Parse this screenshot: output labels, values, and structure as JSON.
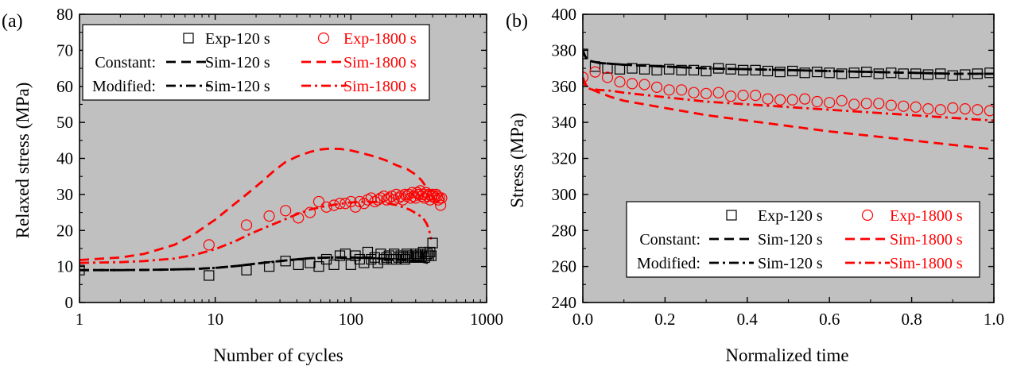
{
  "panels": [
    {
      "panel_label": "(a)",
      "xlabel": "Number of cycles",
      "ylabel": "Relaxed stress (MPa)"
    },
    {
      "panel_label": "(b)",
      "xlabel": "Normalized time",
      "ylabel": "Stress (MPa)"
    }
  ],
  "colors": {
    "plot_bg": "#c0c0c0",
    "black": "#000000",
    "red": "#ff0000",
    "legend_bg": "#ffffff"
  },
  "chart_data": [
    {
      "type": "scatter",
      "panel_label": "(a)",
      "xlabel": "Number of cycles",
      "ylabel": "Relaxed stress (MPa)",
      "xscale": "log",
      "xlim": [
        1,
        1000
      ],
      "ylim": [
        0,
        80
      ],
      "x_ticks": [
        1,
        10,
        100,
        1000
      ],
      "x_tick_labels": [
        "1",
        "10",
        "100",
        "1000"
      ],
      "y_ticks": [
        0,
        10,
        20,
        30,
        40,
        50,
        60,
        70,
        80
      ],
      "y_tick_labels": [
        "0",
        "10",
        "20",
        "30",
        "40",
        "50",
        "60",
        "70",
        "80"
      ],
      "grid": false,
      "legend_position": "top-left",
      "legend_rows": [
        {
          "prefix": "",
          "entries": [
            {
              "series": "Exp-120 s",
              "label": "Exp-120 s",
              "color": "black"
            },
            {
              "series": "Exp-1800 s",
              "label": "Exp-1800 s",
              "color": "red"
            }
          ]
        },
        {
          "prefix": "Constant:",
          "entries": [
            {
              "series": "Constant Sim-120 s",
              "label": "Sim-120 s",
              "color": "black"
            },
            {
              "series": "Constant Sim-1800 s",
              "label": "Sim-1800 s",
              "color": "red"
            }
          ]
        },
        {
          "prefix": "Modified:",
          "entries": [
            {
              "series": "Modified Sim-120 s",
              "label": "Sim-120 s",
              "color": "black"
            },
            {
              "series": "Modified Sim-1800 s",
              "label": "Sim-1800 s",
              "color": "red"
            }
          ]
        }
      ],
      "series": [
        {
          "name": "Exp-120 s",
          "style": "square-open",
          "color": "black",
          "x": [
            1,
            9,
            17,
            25,
            33,
            41,
            50,
            58,
            66,
            75,
            83,
            91,
            100,
            108,
            116,
            125,
            133,
            141,
            150,
            158,
            166,
            175,
            183,
            191,
            200,
            208,
            216,
            225,
            233,
            241,
            250,
            258,
            266,
            275,
            283,
            291,
            300,
            308,
            316,
            325,
            333,
            341,
            350,
            358,
            366,
            375,
            383,
            391,
            400
          ],
          "y": [
            9,
            7.5,
            9,
            10,
            11.5,
            10.5,
            11,
            10,
            12,
            10.5,
            13,
            13.5,
            10.5,
            13,
            12,
            11,
            14,
            12,
            12.5,
            11,
            13.5,
            12,
            12.5,
            13,
            12,
            13.5,
            12,
            12.5,
            13,
            12.5,
            12,
            13.5,
            13,
            12.5,
            13,
            12.5,
            13.5,
            13,
            12.5,
            13.5,
            13,
            14,
            12.5,
            13,
            13.5,
            13,
            14,
            13,
            16.5
          ]
        },
        {
          "name": "Exp-1800 s",
          "style": "circle-open",
          "color": "red",
          "x": [
            9,
            17,
            25,
            33,
            41,
            50,
            58,
            66,
            75,
            83,
            91,
            100,
            108,
            116,
            125,
            133,
            141,
            150,
            158,
            166,
            175,
            183,
            191,
            200,
            208,
            216,
            225,
            233,
            241,
            250,
            258,
            266,
            275,
            283,
            291,
            300,
            308,
            316,
            325,
            333,
            341,
            350,
            358,
            366,
            375,
            383,
            391,
            400,
            408,
            416,
            425,
            433,
            441,
            450,
            458,
            466
          ],
          "y": [
            16,
            21.5,
            24,
            25.5,
            23.5,
            25,
            28,
            26.5,
            27,
            27.5,
            27.5,
            28,
            26.5,
            28,
            27.5,
            28.5,
            29,
            28,
            28.5,
            29,
            29.5,
            28.5,
            29,
            29.5,
            28.5,
            30,
            29,
            29.5,
            28.5,
            30,
            29.5,
            30,
            29,
            30.5,
            29.5,
            29,
            30.5,
            30,
            31,
            29.5,
            30,
            29,
            30.5,
            29.5,
            30,
            28.5,
            29.5,
            30,
            29.5,
            29,
            30,
            29.5,
            28.5,
            29,
            27,
            29
          ]
        },
        {
          "name": "Constant Sim-120 s",
          "style": "dash",
          "color": "black",
          "x": [
            1,
            2,
            4,
            7,
            10,
            15,
            20,
            30,
            40,
            50,
            70,
            100,
            150,
            200,
            250,
            300,
            340,
            370
          ],
          "y": [
            9,
            9,
            9.1,
            9.3,
            9.6,
            10.2,
            10.8,
            11.5,
            12,
            12.3,
            12.5,
            12.5,
            12.3,
            12,
            11.8,
            11.5,
            11.3,
            11
          ]
        },
        {
          "name": "Constant Sim-1800 s",
          "style": "dash",
          "color": "red",
          "x": [
            1,
            2,
            3,
            5,
            7,
            10,
            13,
            17,
            22,
            27,
            33,
            40,
            50,
            60,
            70,
            85,
            100,
            120,
            150,
            180,
            220,
            260,
            300,
            330,
            360,
            380
          ],
          "y": [
            11.8,
            12.5,
            13.5,
            16,
            19,
            23,
            26.5,
            30,
            33.5,
            36.5,
            39,
            40.5,
            41.8,
            42.5,
            42.7,
            42.6,
            42.2,
            41.5,
            40.5,
            39.5,
            38,
            37,
            35.5,
            34,
            32,
            31
          ]
        },
        {
          "name": "Modified Sim-120 s",
          "style": "dashdot",
          "color": "black",
          "x": [
            1,
            2,
            4,
            7,
            10,
            15,
            20,
            30,
            40,
            50,
            70,
            100,
            150,
            200,
            250,
            300,
            340,
            370
          ],
          "y": [
            9,
            9,
            9.1,
            9.3,
            9.6,
            10.2,
            10.8,
            11.5,
            12,
            12.3,
            12.5,
            12.5,
            12.3,
            12,
            11.8,
            11.5,
            11.3,
            11
          ]
        },
        {
          "name": "Modified Sim-1800 s",
          "style": "dashdot",
          "color": "red",
          "x": [
            1,
            2,
            3,
            5,
            7,
            10,
            14,
            18,
            24,
            30,
            40,
            50,
            60,
            80,
            100,
            130,
            170,
            220,
            270,
            310,
            340,
            360,
            375,
            390
          ],
          "y": [
            11,
            11.2,
            11.5,
            12.2,
            13.2,
            14.8,
            17,
            19,
            21,
            22.5,
            24.5,
            25.8,
            26.5,
            27.3,
            27.8,
            28,
            27.8,
            27,
            25.8,
            24.5,
            23.5,
            22,
            20.5,
            17.5
          ]
        }
      ]
    },
    {
      "type": "scatter",
      "panel_label": "(b)",
      "xlabel": "Normalized time",
      "ylabel": "Stress (MPa)",
      "xlim": [
        0,
        1
      ],
      "ylim": [
        240,
        400
      ],
      "x_ticks": [
        0,
        0.2,
        0.4,
        0.6,
        0.8,
        1.0
      ],
      "x_tick_labels": [
        "0.0",
        "0.2",
        "0.4",
        "0.6",
        "0.8",
        "1.0"
      ],
      "y_ticks": [
        240,
        260,
        280,
        300,
        320,
        340,
        360,
        380,
        400
      ],
      "y_tick_labels": [
        "240",
        "260",
        "280",
        "300",
        "320",
        "340",
        "360",
        "380",
        "400"
      ],
      "grid": false,
      "legend_position": "bottom-right",
      "legend_rows": [
        {
          "prefix": "",
          "entries": [
            {
              "series": "Exp-120 s",
              "label": "Exp-120 s",
              "color": "black"
            },
            {
              "series": "Exp-1800 s",
              "label": "Exp-1800 s",
              "color": "red"
            }
          ]
        },
        {
          "prefix": "Constant:",
          "entries": [
            {
              "series": "Constant Sim-120 s",
              "label": "Sim-120 s",
              "color": "black"
            },
            {
              "series": "Constant Sim-1800 s",
              "label": "Sim-1800 s",
              "color": "red"
            }
          ]
        },
        {
          "prefix": "Modified:",
          "entries": [
            {
              "series": "Modified Sim-120 s",
              "label": "Sim-120 s",
              "color": "black"
            },
            {
              "series": "Modified Sim-1800 s",
              "label": "Sim-1800 s",
              "color": "red"
            }
          ]
        }
      ],
      "series": [
        {
          "name": "Exp-120 s",
          "style": "square-open",
          "color": "black",
          "x": [
            0.0,
            0.03,
            0.06,
            0.09,
            0.12,
            0.15,
            0.18,
            0.21,
            0.24,
            0.27,
            0.3,
            0.33,
            0.36,
            0.39,
            0.42,
            0.45,
            0.48,
            0.51,
            0.54,
            0.57,
            0.6,
            0.63,
            0.66,
            0.69,
            0.72,
            0.75,
            0.78,
            0.81,
            0.84,
            0.87,
            0.9,
            0.93,
            0.96,
            0.99
          ],
          "y": [
            378,
            371,
            370,
            369.5,
            370,
            369.5,
            369,
            369.5,
            369,
            369,
            368.5,
            370,
            369.5,
            369,
            369,
            368.5,
            368,
            368.5,
            367.5,
            368,
            367.5,
            367,
            367.5,
            368,
            367,
            367.5,
            367,
            367,
            366.5,
            367,
            366,
            366.5,
            367,
            367.5
          ]
        },
        {
          "name": "Exp-1800 s",
          "style": "circle-open",
          "color": "red",
          "x": [
            0.0,
            0.03,
            0.06,
            0.09,
            0.12,
            0.15,
            0.18,
            0.21,
            0.24,
            0.27,
            0.3,
            0.33,
            0.36,
            0.39,
            0.42,
            0.45,
            0.48,
            0.51,
            0.54,
            0.57,
            0.6,
            0.63,
            0.66,
            0.69,
            0.72,
            0.75,
            0.78,
            0.81,
            0.84,
            0.87,
            0.9,
            0.93,
            0.96,
            0.99
          ],
          "y": [
            365,
            368,
            365,
            362.5,
            361.5,
            361,
            359.5,
            358,
            358,
            356.5,
            356,
            356.5,
            354.5,
            355,
            355,
            353,
            352.5,
            352.5,
            353,
            351.5,
            351,
            352,
            350,
            350.5,
            350.5,
            349.5,
            349,
            348.5,
            347.5,
            347,
            348,
            347.5,
            347,
            346.5
          ]
        },
        {
          "name": "Constant Sim-120 s",
          "style": "dash",
          "color": "black",
          "x": [
            0.0,
            0.005,
            0.01,
            0.02,
            0.04,
            0.07,
            0.1,
            0.2,
            0.3,
            0.4,
            0.5,
            0.6,
            0.7,
            0.8,
            0.9,
            1.0
          ],
          "y": [
            380,
            377,
            375,
            374,
            373,
            372.5,
            372,
            371,
            370,
            369.5,
            369,
            368.5,
            368,
            367.5,
            367,
            367
          ]
        },
        {
          "name": "Constant Sim-1800 s",
          "style": "dash",
          "color": "red",
          "x": [
            0.0,
            0.005,
            0.01,
            0.02,
            0.04,
            0.07,
            0.1,
            0.2,
            0.3,
            0.4,
            0.5,
            0.6,
            0.7,
            0.8,
            0.9,
            1.0
          ],
          "y": [
            365,
            362,
            360,
            358.5,
            356.5,
            354,
            352,
            348,
            344,
            341,
            338,
            335,
            332.5,
            330,
            327.5,
            325
          ]
        },
        {
          "name": "Modified Sim-120 s",
          "style": "dashdot",
          "color": "black",
          "x": [
            0.0,
            0.005,
            0.01,
            0.02,
            0.04,
            0.07,
            0.1,
            0.2,
            0.3,
            0.4,
            0.5,
            0.6,
            0.7,
            0.8,
            0.9,
            1.0
          ],
          "y": [
            380,
            377,
            375,
            374,
            373,
            372.5,
            372,
            371,
            370,
            369.5,
            369,
            368.5,
            368,
            367.5,
            367,
            367
          ]
        },
        {
          "name": "Modified Sim-1800 s",
          "style": "dashdot",
          "color": "red",
          "x": [
            0.0,
            0.005,
            0.01,
            0.02,
            0.04,
            0.07,
            0.1,
            0.2,
            0.3,
            0.4,
            0.5,
            0.6,
            0.7,
            0.8,
            0.9,
            1.0
          ],
          "y": [
            365,
            361,
            359,
            358.5,
            358,
            357.5,
            356.5,
            354,
            351.5,
            350,
            348.5,
            347,
            345.5,
            344,
            342.5,
            341
          ]
        }
      ]
    }
  ]
}
